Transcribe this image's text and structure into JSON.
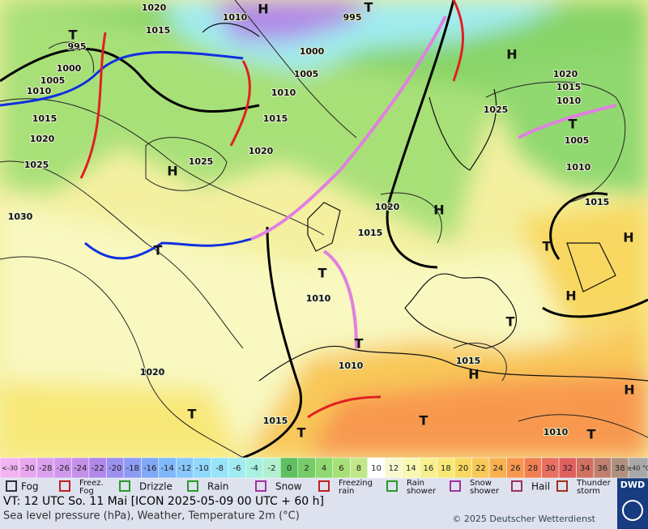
{
  "map": {
    "isobar_labels": [
      "1020",
      "1015",
      "995",
      "1000",
      "1005",
      "1010",
      "1015",
      "1020",
      "1025",
      "1030",
      "1010",
      "995",
      "1000",
      "1005",
      "1010",
      "1015",
      "1020",
      "1025",
      "1020",
      "1015",
      "1010",
      "1010",
      "1020",
      "1015",
      "1015",
      "1010",
      "1020",
      "1015",
      "1010",
      "1025",
      "1005",
      "1010",
      "1015"
    ],
    "centers": [
      "H",
      "T",
      "H",
      "T",
      "H",
      "H",
      "T",
      "T",
      "H",
      "H",
      "T",
      "T",
      "T",
      "H",
      "T",
      "T",
      "T",
      "T",
      "H",
      "T"
    ]
  },
  "scale": [
    {
      "label": "<-30",
      "color": "#f2b4f2"
    },
    {
      "label": -30,
      "color": "#e8a8f0"
    },
    {
      "label": -28,
      "color": "#dca0ee"
    },
    {
      "label": -26,
      "color": "#d098ec"
    },
    {
      "label": -24,
      "color": "#c490ea"
    },
    {
      "label": -22,
      "color": "#b088e8"
    },
    {
      "label": -20,
      "color": "#9c90f0"
    },
    {
      "label": -18,
      "color": "#8c9cf4"
    },
    {
      "label": -16,
      "color": "#80a8f8"
    },
    {
      "label": -14,
      "color": "#80b8fc"
    },
    {
      "label": -12,
      "color": "#88c8fc"
    },
    {
      "label": -10,
      "color": "#90d8fc"
    },
    {
      "label": -8,
      "color": "#98e4f8"
    },
    {
      "label": -6,
      "color": "#a0ecf0"
    },
    {
      "label": -4,
      "color": "#a8f0e0"
    },
    {
      "label": -2,
      "color": "#b0f0d0"
    },
    {
      "label": 0,
      "color": "#60c060"
    },
    {
      "label": 2,
      "color": "#78cc68"
    },
    {
      "label": 4,
      "color": "#90d870"
    },
    {
      "label": 6,
      "color": "#a8e078"
    },
    {
      "label": 8,
      "color": "#c0e888"
    },
    {
      "label": 10,
      "color": "#ffffff"
    },
    {
      "label": 12,
      "color": "#f8f8d0"
    },
    {
      "label": 14,
      "color": "#f8f8b0"
    },
    {
      "label": 16,
      "color": "#f8f090"
    },
    {
      "label": 18,
      "color": "#f8e878"
    },
    {
      "label": 20,
      "color": "#f8d860"
    },
    {
      "label": 22,
      "color": "#f8c858"
    },
    {
      "label": 24,
      "color": "#f8b050"
    },
    {
      "label": 26,
      "color": "#f89850"
    },
    {
      "label": 28,
      "color": "#f08050"
    },
    {
      "label": 30,
      "color": "#e87060"
    },
    {
      "label": 32,
      "color": "#e06060"
    },
    {
      "label": 34,
      "color": "#d07060"
    },
    {
      "label": 36,
      "color": "#c08070"
    },
    {
      "label": 38,
      "color": "#b09080"
    },
    {
      "label": "≥40 °C",
      "color": "#a8a8a8"
    }
  ],
  "legend": [
    {
      "lines": [
        "Fog"
      ]
    },
    {
      "lines": [
        "Freez.",
        "Fog"
      ]
    },
    {
      "lines": [
        "Drizzle"
      ]
    },
    {
      "lines": [
        "Rain"
      ]
    },
    {
      "lines": [
        "Snow"
      ]
    },
    {
      "lines": [
        "Freezing",
        "rain"
      ]
    },
    {
      "lines": [
        "Rain",
        "shower"
      ]
    },
    {
      "lines": [
        "Snow",
        "shower"
      ]
    },
    {
      "lines": [
        "Hail"
      ]
    },
    {
      "lines": [
        "Thunder",
        "storm"
      ]
    }
  ],
  "footer": {
    "valid_time": "VT: 12 UTC So.  11 Mai [ICON 2025-05-09  00 UTC + 60 h]",
    "description": "Sea level pressure (hPa), Weather, Temperature 2m (°C)",
    "copyright": "© 2025 Deutscher Wetterdienst",
    "logo": "DWD"
  }
}
